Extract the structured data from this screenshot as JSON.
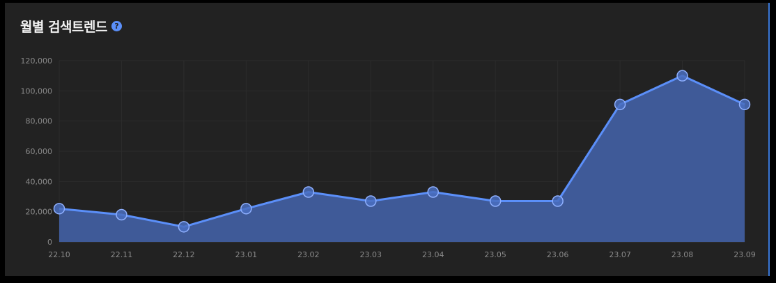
{
  "panel": {
    "title": "월별 검색트렌드",
    "help_icon": "question-circle-icon"
  },
  "colors": {
    "accent": "#5b8ff9",
    "area_fill": "#3f5a98",
    "grid": "#2c2c2c",
    "background": "#222222"
  },
  "chart_data": {
    "type": "area",
    "title": "월별 검색트렌드",
    "categories": [
      "22.10",
      "22.11",
      "22.12",
      "23.01",
      "23.02",
      "23.03",
      "23.04",
      "23.05",
      "23.06",
      "23.07",
      "23.08",
      "23.09"
    ],
    "series": [
      {
        "values": [
          22000,
          18000,
          10000,
          22000,
          33000,
          27000,
          33000,
          27000,
          27000,
          91000,
          110000,
          91000
        ]
      }
    ],
    "y_ticks": [
      "0",
      "20,000",
      "40,000",
      "60,000",
      "80,000",
      "100,000",
      "120,000"
    ],
    "ylim": [
      0,
      120000
    ],
    "grid": true,
    "legend": "none"
  }
}
